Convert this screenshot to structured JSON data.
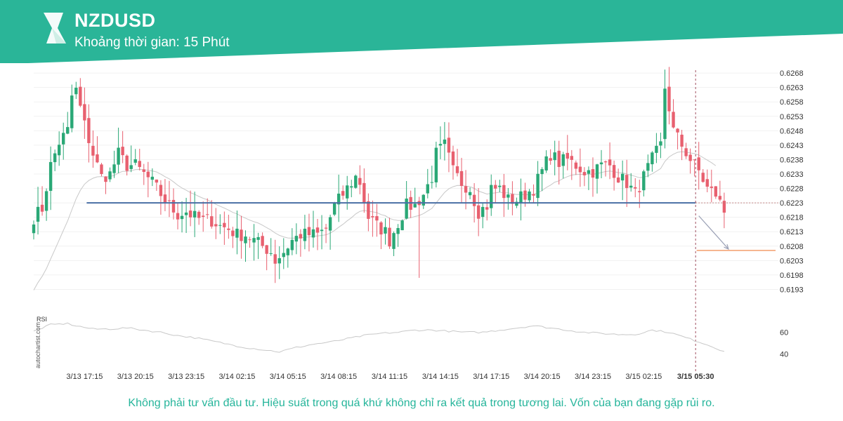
{
  "header": {
    "symbol": "NZDUSD",
    "interval_label": "Khoảng thời gian: 15 Phút",
    "brand_color": "#2ab598",
    "logo_icon": "autochartist-logo-icon"
  },
  "watermark": "autochartist.com",
  "disclaimer": "Không phải tư vấn đầu tư. Hiệu suất trong quá khứ không chỉ ra kết quả trong tương lai. Vốn của bạn đang gặp rủi ro.",
  "chart_data": {
    "type": "candlestick",
    "symbol": "NZDUSD",
    "y_ticks": [
      0.6193,
      0.6198,
      0.6203,
      0.6208,
      0.6213,
      0.6218,
      0.6223,
      0.6228,
      0.6233,
      0.6238,
      0.6243,
      0.6248,
      0.6253,
      0.6258,
      0.6263,
      0.6268
    ],
    "ylim": [
      0.6188,
      0.6269
    ],
    "x_tick_labels": [
      "3/13 17:15",
      "3/13 20:15",
      "3/13 23:15",
      "3/14 02:15",
      "3/14 05:15",
      "3/14 08:15",
      "3/14 11:15",
      "3/14 14:15",
      "3/14 17:15",
      "3/14 20:15",
      "3/14 23:15",
      "3/15 02:15",
      "3/15 05:30"
    ],
    "x_tick_bar_index": [
      12,
      24,
      36,
      48,
      60,
      72,
      84,
      96,
      108,
      120,
      132,
      144,
      156.25
    ],
    "bar_count": 164,
    "colors": {
      "up": "#2aa876",
      "down": "#e8606f",
      "support": "#4a6fa5",
      "target": "#ef7c3a",
      "ma": "#c8c8c8",
      "rsi": "#c8c8c8"
    },
    "support_level": 0.6223,
    "target_level": 0.62065,
    "current_time_bar_index": 156.25,
    "projection": {
      "from": [
        157,
        0.62185
      ],
      "to": [
        164,
        0.6207
      ]
    },
    "close_anchors": [
      [
        0,
        0.6218
      ],
      [
        2,
        0.6221
      ],
      [
        4,
        0.6236
      ],
      [
        6,
        0.6244
      ],
      [
        8,
        0.6248
      ],
      [
        9,
        0.626
      ],
      [
        10,
        0.6262
      ],
      [
        12,
        0.625
      ],
      [
        14,
        0.624
      ],
      [
        16,
        0.6232
      ],
      [
        18,
        0.6233
      ],
      [
        20,
        0.624
      ],
      [
        22,
        0.6236
      ],
      [
        24,
        0.6236
      ],
      [
        26,
        0.6233
      ],
      [
        28,
        0.623
      ],
      [
        30,
        0.6226
      ],
      [
        32,
        0.6222
      ],
      [
        34,
        0.6219
      ],
      [
        36,
        0.622
      ],
      [
        38,
        0.6218
      ],
      [
        40,
        0.6217
      ],
      [
        42,
        0.6217
      ],
      [
        44,
        0.6215
      ],
      [
        46,
        0.6214
      ],
      [
        48,
        0.6212
      ],
      [
        50,
        0.6212
      ],
      [
        52,
        0.621
      ],
      [
        54,
        0.6208
      ],
      [
        56,
        0.6206
      ],
      [
        57,
        0.6203
      ],
      [
        59,
        0.6206
      ],
      [
        61,
        0.621
      ],
      [
        63,
        0.6212
      ],
      [
        65,
        0.6212
      ],
      [
        67,
        0.6212
      ],
      [
        69,
        0.6214
      ],
      [
        71,
        0.6222
      ],
      [
        73,
        0.6226
      ],
      [
        74,
        0.6228
      ],
      [
        76,
        0.6232
      ],
      [
        77,
        0.623
      ],
      [
        79,
        0.6218
      ],
      [
        81,
        0.6215
      ],
      [
        83,
        0.6213
      ],
      [
        84,
        0.621
      ],
      [
        86,
        0.6216
      ],
      [
        88,
        0.6222
      ],
      [
        90,
        0.6222
      ],
      [
        92,
        0.6226
      ],
      [
        94,
        0.6232
      ],
      [
        95,
        0.624
      ],
      [
        97,
        0.6243
      ],
      [
        99,
        0.6234
      ],
      [
        101,
        0.623
      ],
      [
        103,
        0.6228
      ],
      [
        105,
        0.622
      ],
      [
        107,
        0.6222
      ],
      [
        108,
        0.6228
      ],
      [
        110,
        0.6228
      ],
      [
        112,
        0.6224
      ],
      [
        114,
        0.6224
      ],
      [
        116,
        0.6226
      ],
      [
        118,
        0.6228
      ],
      [
        120,
        0.6234
      ],
      [
        122,
        0.624
      ],
      [
        124,
        0.6237
      ],
      [
        126,
        0.6238
      ],
      [
        128,
        0.6236
      ],
      [
        130,
        0.6234
      ],
      [
        132,
        0.6234
      ],
      [
        134,
        0.6236
      ],
      [
        136,
        0.6236
      ],
      [
        138,
        0.6232
      ],
      [
        140,
        0.623
      ],
      [
        142,
        0.6226
      ],
      [
        144,
        0.6232
      ],
      [
        146,
        0.6238
      ],
      [
        148,
        0.6243
      ],
      [
        149,
        0.6263
      ],
      [
        150,
        0.6256
      ],
      [
        151,
        0.6248
      ],
      [
        153,
        0.6243
      ],
      [
        155,
        0.6238
      ],
      [
        157,
        0.6234
      ],
      [
        159,
        0.6228
      ],
      [
        161,
        0.6226
      ],
      [
        162,
        0.6223
      ],
      [
        163,
        0.622
      ],
      [
        164,
        0.6216
      ]
    ],
    "wick_extremes": [
      {
        "bar": 91,
        "low": 0.6197
      }
    ],
    "rsi": {
      "label": "RSI",
      "ticks": [
        40,
        60
      ],
      "ylim": [
        30,
        72
      ],
      "series_anchors": [
        [
          0,
          61
        ],
        [
          4,
          67
        ],
        [
          8,
          68
        ],
        [
          10,
          66
        ],
        [
          14,
          63
        ],
        [
          18,
          63
        ],
        [
          22,
          64
        ],
        [
          26,
          62
        ],
        [
          30,
          60
        ],
        [
          34,
          57
        ],
        [
          38,
          55
        ],
        [
          42,
          52
        ],
        [
          46,
          49
        ],
        [
          50,
          46
        ],
        [
          54,
          44
        ],
        [
          58,
          42
        ],
        [
          62,
          46
        ],
        [
          66,
          49
        ],
        [
          70,
          51
        ],
        [
          74,
          54
        ],
        [
          78,
          57
        ],
        [
          82,
          59
        ],
        [
          86,
          60
        ],
        [
          90,
          62
        ],
        [
          94,
          62
        ],
        [
          98,
          61
        ],
        [
          102,
          60
        ],
        [
          106,
          60
        ],
        [
          110,
          62
        ],
        [
          114,
          64
        ],
        [
          118,
          66
        ],
        [
          122,
          64
        ],
        [
          126,
          62
        ],
        [
          130,
          60
        ],
        [
          134,
          59
        ],
        [
          138,
          58
        ],
        [
          142,
          58
        ],
        [
          146,
          62
        ],
        [
          150,
          60
        ],
        [
          154,
          55
        ],
        [
          158,
          50
        ],
        [
          162,
          44
        ],
        [
          164,
          42
        ]
      ]
    }
  }
}
